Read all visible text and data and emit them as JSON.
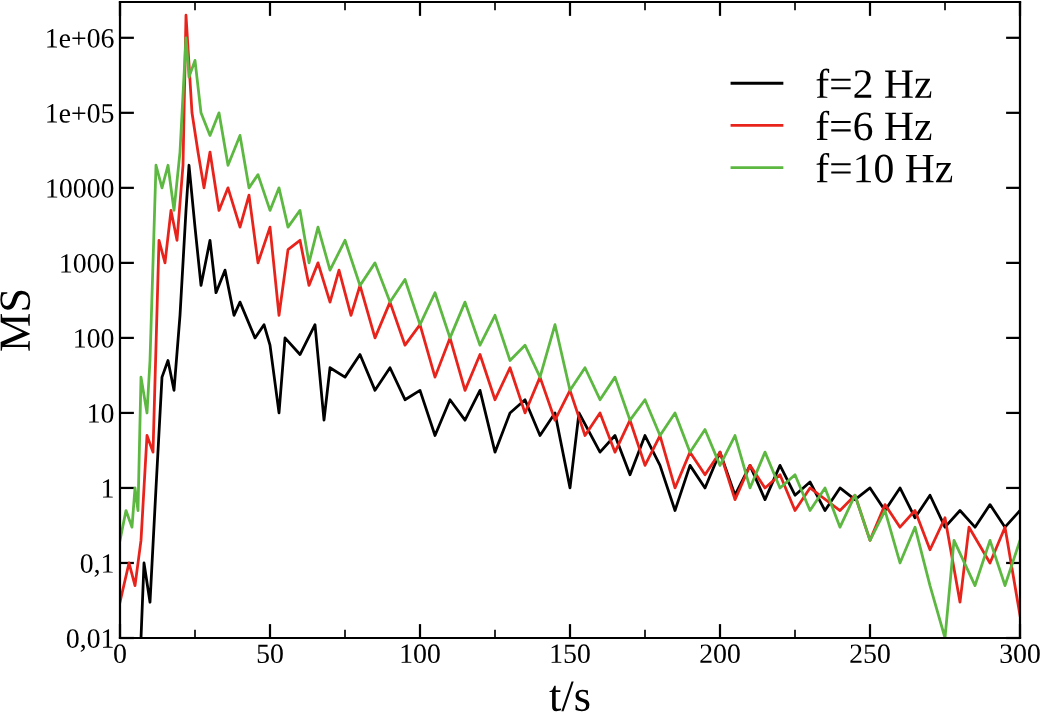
{
  "chart_data": {
    "type": "line",
    "xlabel": "t/s",
    "ylabel": "MS",
    "log": "y",
    "legend": "top right",
    "grid": false,
    "xlim": [
      0,
      300
    ],
    "xticks": [
      0,
      50,
      100,
      150,
      200,
      250,
      300
    ],
    "ylim": [
      0.01,
      3000000
    ],
    "yticks": [
      {
        "value": 0.01,
        "label": "0,01"
      },
      {
        "value": 0.1,
        "label": "0,1"
      },
      1,
      10,
      100,
      1000,
      10000,
      {
        "value": 100000,
        "label": "1e+05"
      },
      {
        "value": 1000000,
        "label": "1e+06"
      }
    ],
    "series": [
      {
        "name": "f=2 Hz",
        "color": "#000000",
        "x": [
          7,
          8,
          10,
          12,
          14,
          16,
          18,
          20,
          22,
          23,
          25,
          27,
          30,
          32,
          35,
          38,
          40,
          45,
          48,
          50,
          53,
          55,
          60,
          65,
          68,
          70,
          75,
          80,
          85,
          90,
          95,
          100,
          105,
          110,
          115,
          120,
          125,
          130,
          135,
          140,
          145,
          150,
          153,
          160,
          165,
          170,
          175,
          180,
          185,
          190,
          195,
          200,
          205,
          210,
          215,
          220,
          225,
          230,
          235,
          240,
          245,
          250,
          255,
          260,
          265,
          270,
          275,
          280,
          285,
          290,
          295,
          300
        ],
        "values": [
          0.01,
          0.1,
          0.03,
          1,
          30,
          50,
          20,
          200,
          5000,
          20000,
          3000,
          500,
          2000,
          400,
          800,
          200,
          300,
          100,
          150,
          80,
          10,
          100,
          60,
          150,
          8,
          40,
          30,
          60,
          20,
          40,
          15,
          20,
          5,
          15,
          8,
          20,
          3,
          10,
          15,
          5,
          10,
          1,
          10,
          3,
          5,
          1.5,
          5,
          2,
          0.5,
          2,
          1,
          3,
          0.8,
          2,
          0.7,
          2,
          0.8,
          1.2,
          0.5,
          1,
          0.7,
          1,
          0.5,
          1,
          0.4,
          0.8,
          0.3,
          0.5,
          0.3,
          0.6,
          0.3,
          0.5
        ]
      },
      {
        "name": "f=6 Hz",
        "color": "#e8231b",
        "x": [
          0,
          3,
          5,
          7,
          9,
          11,
          13,
          15,
          17,
          19,
          21,
          22,
          24,
          26,
          28,
          30,
          33,
          36,
          40,
          43,
          46,
          50,
          53,
          56,
          60,
          63,
          66,
          70,
          73,
          77,
          80,
          85,
          90,
          95,
          100,
          105,
          110,
          115,
          120,
          125,
          130,
          135,
          140,
          145,
          150,
          155,
          160,
          165,
          170,
          175,
          180,
          185,
          190,
          195,
          200,
          205,
          210,
          215,
          220,
          225,
          230,
          240,
          245,
          250,
          255,
          260,
          265,
          270,
          275,
          280,
          283,
          290,
          295,
          300
        ],
        "values": [
          0.03,
          0.1,
          0.05,
          0.2,
          5,
          3,
          2000,
          1000,
          5000,
          2000,
          20000,
          2000000,
          100000,
          30000,
          10000,
          30000,
          5000,
          10000,
          3000,
          8000,
          1000,
          3000,
          200,
          1500,
          2000,
          500,
          1000,
          300,
          800,
          200,
          500,
          100,
          300,
          80,
          150,
          30,
          100,
          20,
          60,
          15,
          40,
          10,
          30,
          8,
          20,
          5,
          10,
          3,
          8,
          2,
          5,
          1,
          3,
          1.5,
          3,
          0.7,
          2,
          1,
          1.5,
          0.5,
          1,
          0.5,
          0.8,
          0.2,
          0.6,
          0.3,
          0.5,
          0.15,
          0.4,
          0.03,
          0.3,
          0.1,
          0.3,
          0.02
        ]
      },
      {
        "name": "f=10 Hz",
        "color": "#5cb840",
        "x": [
          0,
          2,
          4,
          5,
          6,
          7,
          9,
          10,
          12,
          14,
          16,
          18,
          20,
          22,
          23,
          25,
          27,
          30,
          33,
          36,
          40,
          43,
          46,
          50,
          53,
          56,
          60,
          63,
          66,
          70,
          75,
          80,
          85,
          90,
          95,
          100,
          105,
          110,
          115,
          120,
          125,
          130,
          135,
          140,
          145,
          150,
          155,
          160,
          165,
          170,
          175,
          180,
          185,
          190,
          195,
          200,
          205,
          210,
          215,
          220,
          225,
          230,
          235,
          240,
          245,
          250,
          255,
          260,
          265,
          270,
          275,
          278,
          285,
          290,
          295,
          300
        ],
        "values": [
          0.2,
          0.5,
          0.3,
          1,
          0.5,
          30,
          10,
          50,
          20000,
          10000,
          20000,
          5000,
          30000,
          1000000,
          300000,
          500000,
          100000,
          50000,
          100000,
          20000,
          50000,
          10000,
          15000,
          5000,
          10000,
          3000,
          5000,
          1000,
          3000,
          800,
          2000,
          500,
          1000,
          300,
          600,
          150,
          400,
          100,
          300,
          80,
          200,
          50,
          80,
          30,
          150,
          20,
          40,
          15,
          30,
          8,
          15,
          5,
          10,
          3,
          6,
          2,
          5,
          1,
          3,
          1,
          1.5,
          0.5,
          1,
          0.3,
          0.8,
          0.2,
          0.5,
          0.1,
          0.3,
          0.05,
          0.01,
          0.2,
          0.05,
          0.2,
          0.05,
          0.2
        ]
      }
    ]
  }
}
